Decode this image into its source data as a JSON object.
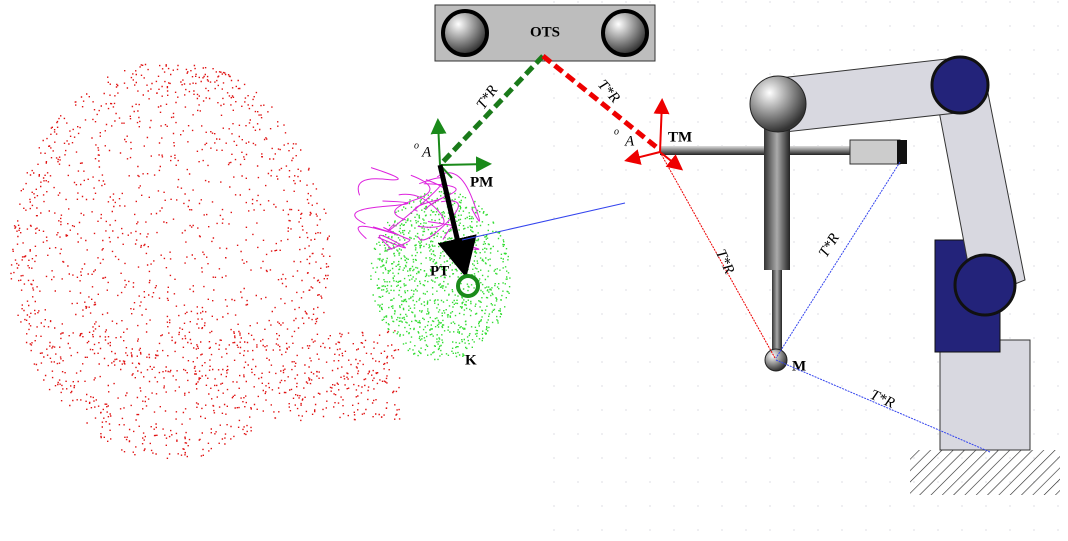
{
  "labels": {
    "ots": "OTS",
    "pm": "PM",
    "tm": "TM",
    "pt": "PT",
    "k": "K",
    "m": "M"
  },
  "transforms": [
    "T*R",
    "T*R",
    "T*R",
    "T*R",
    "T*R"
  ],
  "frames": [
    {
      "sup": "o",
      "main": "A"
    },
    {
      "sup": "o",
      "main": "A"
    }
  ]
}
